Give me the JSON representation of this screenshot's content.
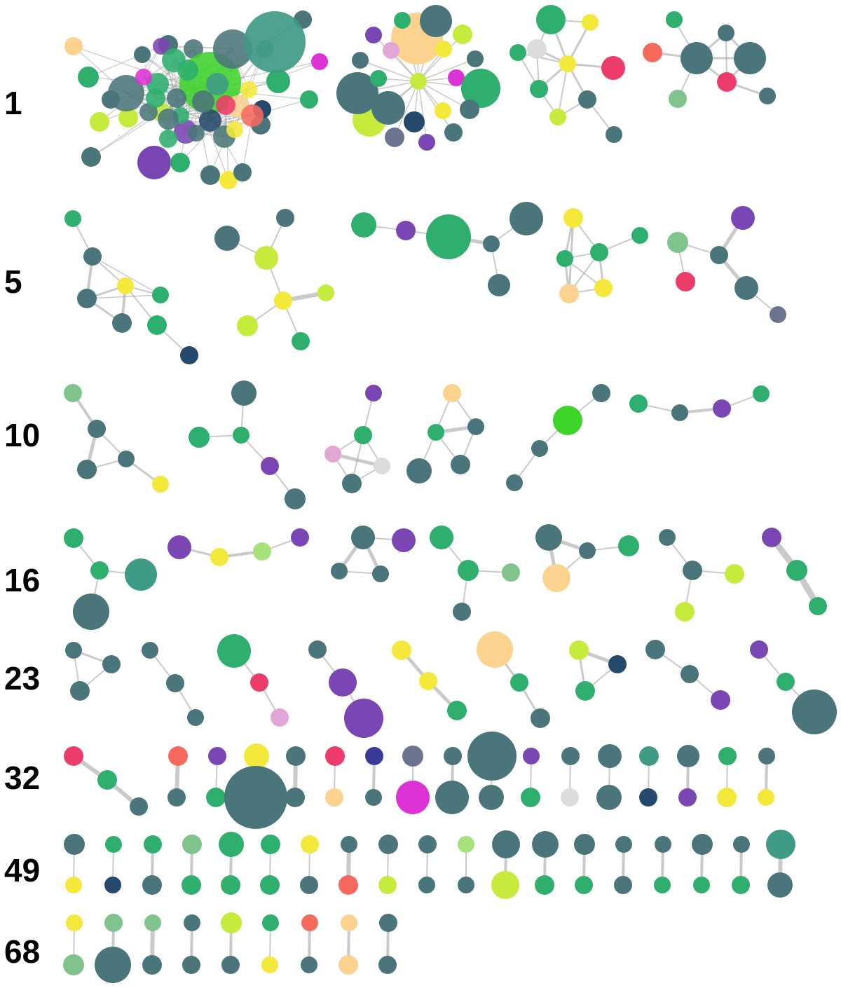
{
  "row_labels": [
    "1",
    "5",
    "10",
    "16",
    "23",
    "32",
    "49",
    "68"
  ],
  "palette": {
    "slate": "#4a757a",
    "teal": "#3f9a86",
    "green": "#2eaf6e",
    "lime": "#c5ec3d",
    "yellow": "#f4e93a",
    "peach": "#fbd38f",
    "purple": "#7a46b3",
    "magenta": "#dd33d6",
    "pink": "#ee3c6a",
    "coral": "#f66a5e",
    "lightgreen": "#80c38c",
    "palegreen": "#a6e27c",
    "navy": "#24496a",
    "gray": "#dcdcdc",
    "lavender": "#e2a6d6",
    "indigo": "#3a3a98",
    "greyblue": "#6b7590",
    "brightgreen": "#3ed42a"
  }
}
